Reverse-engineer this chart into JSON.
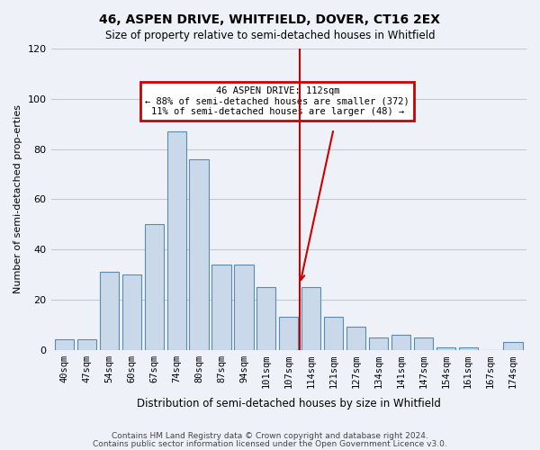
{
  "title": "46, ASPEN DRIVE, WHITFIELD, DOVER, CT16 2EX",
  "subtitle": "Size of property relative to semi-detached houses in Whitfield",
  "xlabel": "Distribution of semi-detached houses by size in Whitfield",
  "ylabel": "Number of semi-detached prop­erties",
  "categories": [
    "40sqm",
    "47sqm",
    "54sqm",
    "60sqm",
    "67sqm",
    "74sqm",
    "80sqm",
    "87sqm",
    "94sqm",
    "101sqm",
    "107sqm",
    "114sqm",
    "121sqm",
    "127sqm",
    "134sqm",
    "141sqm",
    "147sqm",
    "154sqm",
    "161sqm",
    "167sqm",
    "174sqm"
  ],
  "values": [
    4,
    4,
    31,
    30,
    50,
    87,
    76,
    34,
    34,
    25,
    13,
    25,
    13,
    9,
    5,
    6,
    5,
    1,
    1,
    0,
    3
  ],
  "bar_color": "#c9d9ea",
  "bar_edge_color": "#5a8ab0",
  "grid_color": "#c0c8d8",
  "background_color": "#eef2f8",
  "red_line_index": 11,
  "red_line_color": "#cc0000",
  "annotation_text": "46 ASPEN DRIVE: 112sqm\n← 88% of semi-detached houses are smaller (372)\n11% of semi-detached houses are larger (48) →",
  "annotation_box_color": "#cc0000",
  "property_sqm": 112,
  "footer_line1": "Contains HM Land Registry data © Crown copyright and database right 2024.",
  "footer_line2": "Contains public sector information licensed under the Open Government Licence v3.0.",
  "ylim": [
    0,
    120
  ],
  "yticks": [
    0,
    20,
    40,
    60,
    80,
    100,
    120
  ]
}
